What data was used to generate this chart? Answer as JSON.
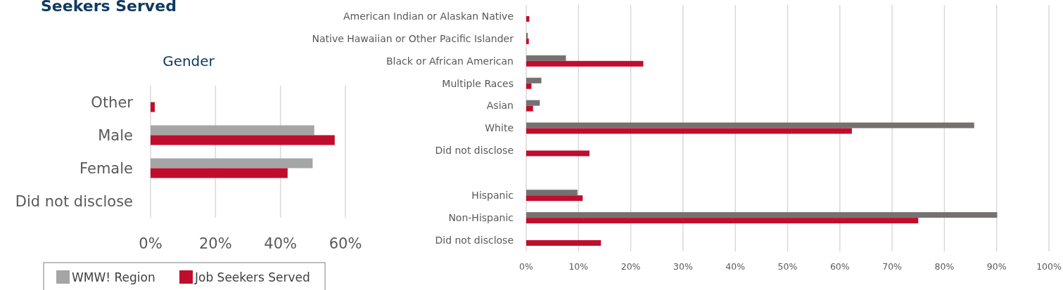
{
  "chart_data": [
    {
      "type": "bar",
      "orientation": "horizontal",
      "title": "Seekers Served",
      "subtitle": "Gender",
      "categories": [
        "Other",
        "Male",
        "Female",
        "Did not disclose"
      ],
      "series": [
        {
          "name": "WMW! Region",
          "color": "#a5a5a5",
          "values": [
            0,
            50.4,
            49.9,
            0
          ]
        },
        {
          "name": "Job Seekers Served",
          "color": "#c00d2e",
          "values": [
            1.3,
            56.7,
            42.2,
            0
          ]
        }
      ],
      "xlim": [
        0,
        60
      ],
      "xticks": [
        {
          "value": 0,
          "label": "0%"
        },
        {
          "value": 20,
          "label": "20%"
        },
        {
          "value": 40,
          "label": "40%"
        },
        {
          "value": 60,
          "label": "60%"
        }
      ],
      "grid": "x",
      "legend": "bottom"
    },
    {
      "type": "bar",
      "orientation": "horizontal",
      "categories": [
        "American Indian or Alaskan Native",
        "Native Hawaiian or Other Pacific Islander",
        "Black or African American",
        "Multiple Races",
        "Asian",
        "White",
        "Did not disclose",
        null,
        "Hispanic",
        "Non-Hispanic",
        "Did not disclose"
      ],
      "series": [
        {
          "color": "#767171",
          "values": [
            0,
            0.3,
            7.6,
            2.9,
            2.6,
            85.7,
            0,
            null,
            9.8,
            90.1,
            0
          ]
        },
        {
          "color": "#c00d2e",
          "values": [
            0.6,
            0.5,
            22.4,
            1.0,
            1.3,
            62.3,
            12.1,
            null,
            10.8,
            75.0,
            14.3
          ]
        }
      ],
      "xlim": [
        0,
        100
      ],
      "xticks": [
        {
          "value": 0,
          "label": "0%"
        },
        {
          "value": 10,
          "label": "10%"
        },
        {
          "value": 20,
          "label": "20%"
        },
        {
          "value": 30,
          "label": "30%"
        },
        {
          "value": 40,
          "label": "40%"
        },
        {
          "value": 50,
          "label": "50%"
        },
        {
          "value": 60,
          "label": "60%"
        },
        {
          "value": 70,
          "label": "70%"
        },
        {
          "value": 80,
          "label": "80%"
        },
        {
          "value": 90,
          "label": "90%"
        },
        {
          "value": 100,
          "label": "100%"
        }
      ],
      "grid": "x"
    }
  ]
}
